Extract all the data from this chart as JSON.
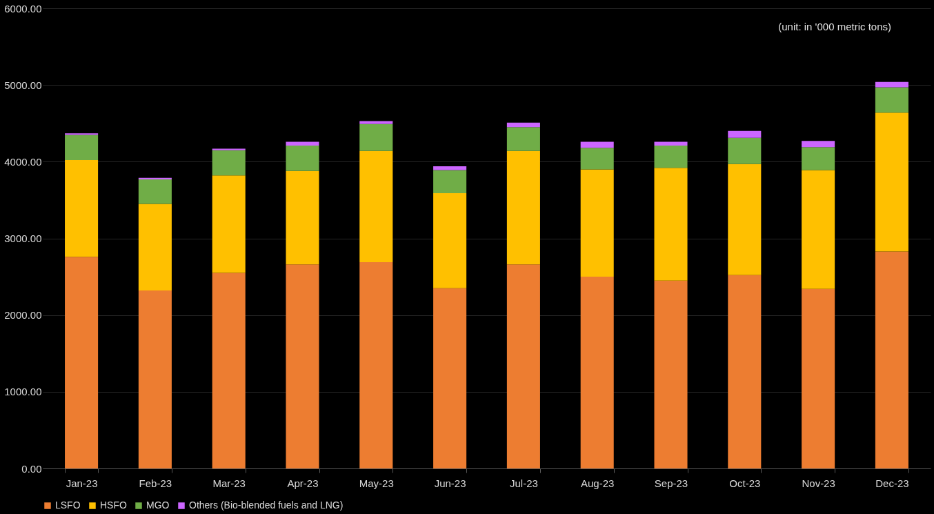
{
  "chart_data": {
    "type": "bar",
    "stacked": true,
    "categories": [
      "Jan-23",
      "Feb-23",
      "Mar-23",
      "Apr-23",
      "May-23",
      "Jun-23",
      "Jul-23",
      "Aug-23",
      "Sep-23",
      "Oct-23",
      "Nov-23",
      "Dec-23"
    ],
    "series": [
      {
        "name": "LSFO",
        "color": "#ed7d31",
        "values": [
          2760,
          2320,
          2550,
          2660,
          2690,
          2350,
          2660,
          2500,
          2450,
          2520,
          2340,
          2830
        ]
      },
      {
        "name": "HSFO",
        "color": "#ffc000",
        "values": [
          1260,
          1130,
          1270,
          1220,
          1450,
          1240,
          1480,
          1400,
          1470,
          1450,
          1550,
          1810
        ]
      },
      {
        "name": "MGO",
        "color": "#70ad47",
        "values": [
          330,
          320,
          330,
          330,
          350,
          300,
          310,
          280,
          290,
          340,
          300,
          330
        ]
      },
      {
        "name": "Others (Bio-blended fuels and LNG)",
        "color": "#cc66ff",
        "values": [
          20,
          20,
          20,
          50,
          40,
          50,
          60,
          80,
          50,
          90,
          80,
          70
        ]
      }
    ],
    "ylim": [
      0,
      6000
    ],
    "yticks": [
      {
        "value": 0,
        "label": "0.00"
      },
      {
        "value": 1000,
        "label": "1000.00"
      },
      {
        "value": 2000,
        "label": "2000.00"
      },
      {
        "value": 3000,
        "label": "3000.00"
      },
      {
        "value": 4000,
        "label": "4000.00"
      },
      {
        "value": 5000,
        "label": "5000.00"
      },
      {
        "value": 6000,
        "label": "6000.00"
      }
    ],
    "grid": "y",
    "legend": "bottom",
    "annotations": [
      "(unit: in '000 metric tons)"
    ]
  }
}
